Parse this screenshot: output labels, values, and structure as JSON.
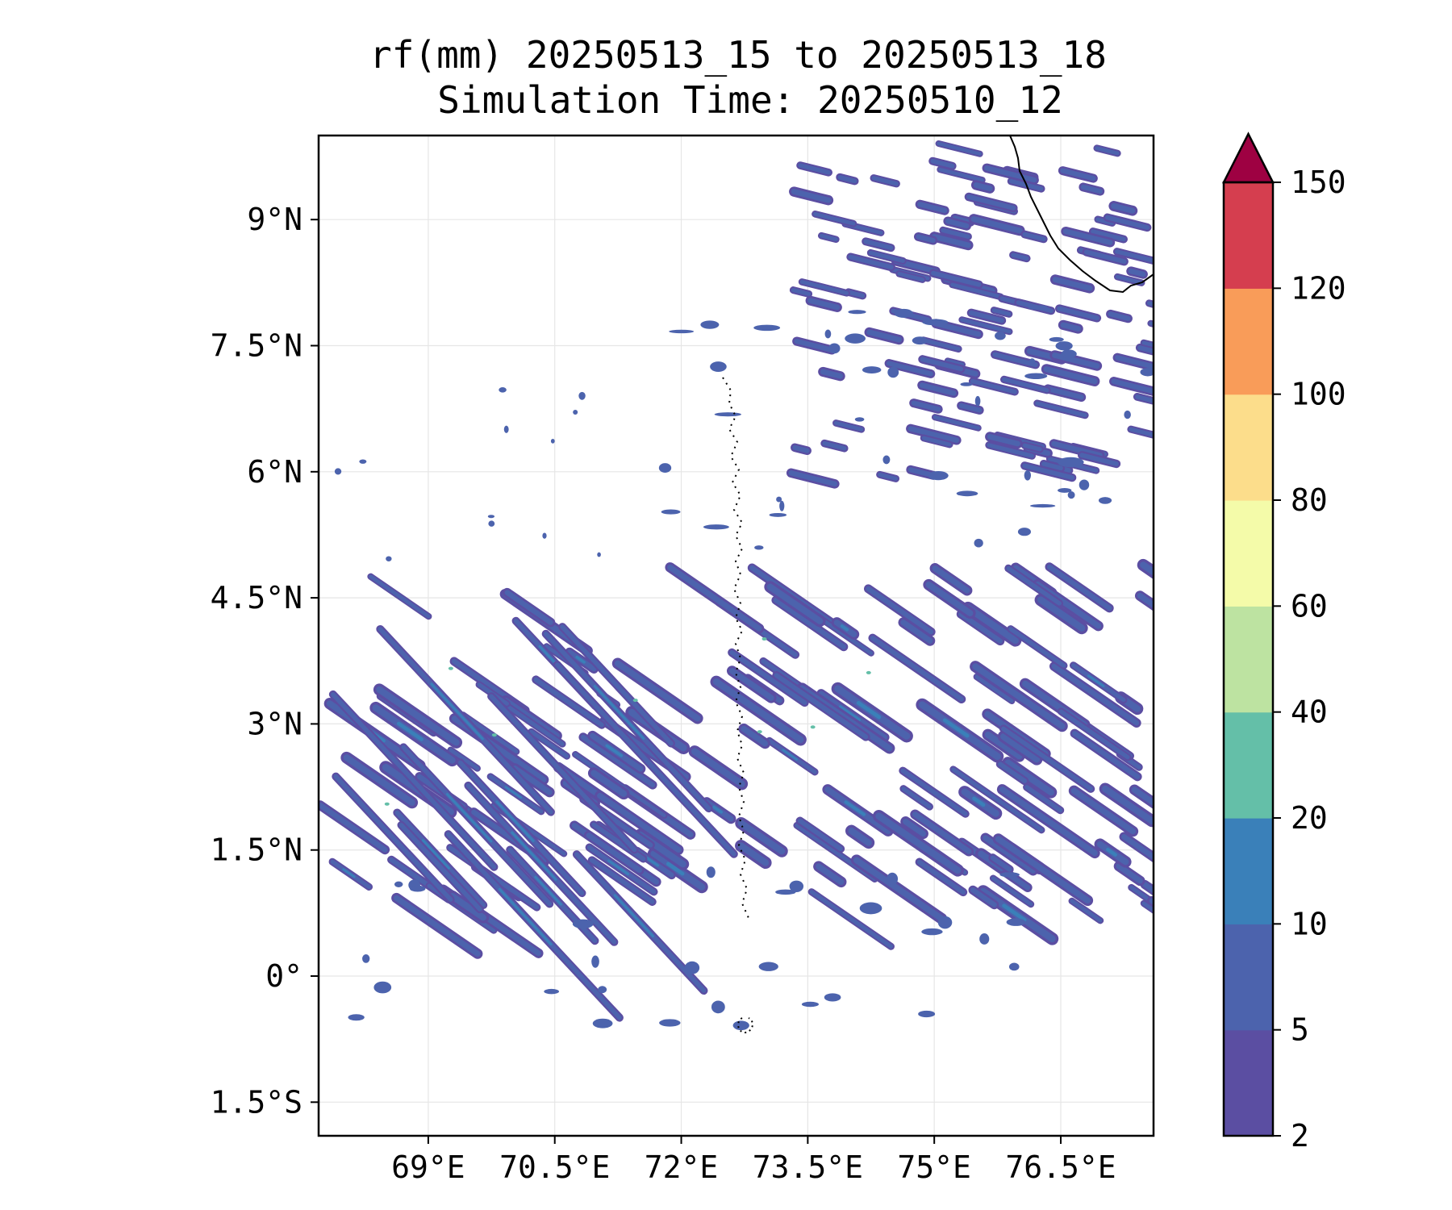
{
  "title": {
    "line1": "rf(mm) 20250513_15 to 20250513_18",
    "line2": "Simulation Time: 20250510_12"
  },
  "map": {
    "lon_range": [
      67.7,
      77.6
    ],
    "lat_range": [
      -1.9,
      10.0
    ],
    "x_ticks": [
      {
        "value": 69,
        "label": "69°E"
      },
      {
        "value": 70.5,
        "label": "70.5°E"
      },
      {
        "value": 72,
        "label": "72°E"
      },
      {
        "value": 73.5,
        "label": "73.5°E"
      },
      {
        "value": 75,
        "label": "75°E"
      },
      {
        "value": 76.5,
        "label": "76.5°E"
      }
    ],
    "y_ticks": [
      {
        "value": 9,
        "label": "9°N"
      },
      {
        "value": 7.5,
        "label": "7.5°N"
      },
      {
        "value": 6,
        "label": "6°N"
      },
      {
        "value": 4.5,
        "label": "4.5°N"
      },
      {
        "value": 3,
        "label": "3°N"
      },
      {
        "value": 1.5,
        "label": "1.5°N"
      },
      {
        "value": 0,
        "label": "0°"
      },
      {
        "value": -1.5,
        "label": "1.5°S"
      }
    ],
    "grid": true
  },
  "colorbar": {
    "levels": [
      "2",
      "5",
      "10",
      "20",
      "40",
      "60",
      "80",
      "100",
      "120",
      "150"
    ],
    "colors": [
      "#5b4ea2",
      "#4c63ad",
      "#3a80b9",
      "#64bfa8",
      "#bde3a1",
      "#f4fba9",
      "#fcdd8b",
      "#f99c59",
      "#d53e4f"
    ],
    "extend_color": "#9e0142",
    "extend": "max"
  }
}
